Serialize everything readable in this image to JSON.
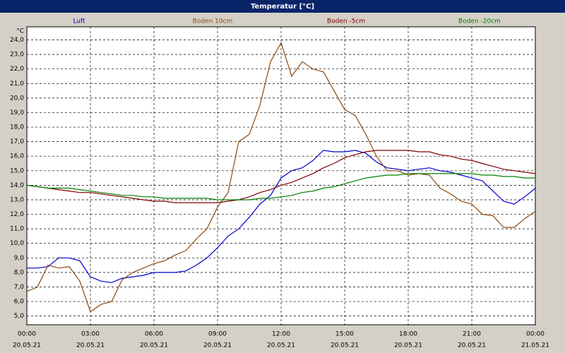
{
  "chart_data": {
    "type": "line",
    "title": "Temperatur [°C]",
    "y_unit": "°C",
    "x": [
      0,
      0.5,
      1,
      1.5,
      2,
      2.5,
      3,
      3.5,
      4,
      4.5,
      5,
      5.5,
      6,
      6.5,
      7,
      7.5,
      8,
      8.5,
      9,
      9.5,
      10,
      10.5,
      11,
      11.5,
      12,
      12.5,
      13,
      13.5,
      14,
      14.5,
      15,
      15.5,
      16,
      16.5,
      17,
      17.5,
      18,
      18.5,
      19,
      19.5,
      20,
      20.5,
      21,
      21.5,
      22,
      22.5,
      23,
      23.5,
      24
    ],
    "xlim": [
      0,
      24
    ],
    "xticks": [
      {
        "value": 0,
        "label": [
          "00:00",
          "20.05.21"
        ]
      },
      {
        "value": 3,
        "label": [
          "03:00",
          "20.05.21"
        ]
      },
      {
        "value": 6,
        "label": [
          "06:00",
          "20.05.21"
        ]
      },
      {
        "value": 9,
        "label": [
          "09:00",
          "20.05.21"
        ]
      },
      {
        "value": 12,
        "label": [
          "12:00",
          "20.05.21"
        ]
      },
      {
        "value": 15,
        "label": [
          "15:00",
          "20.05.21"
        ]
      },
      {
        "value": 18,
        "label": [
          "18:00",
          "20.05.21"
        ]
      },
      {
        "value": 21,
        "label": [
          "21:00",
          "20.05.21"
        ]
      },
      {
        "value": 24,
        "label": [
          "00:00",
          "21.05.21"
        ]
      }
    ],
    "ylim": [
      4.4,
      24.9
    ],
    "yticks": [
      {
        "value": 5,
        "label": "5,0"
      },
      {
        "value": 6,
        "label": "6,0"
      },
      {
        "value": 7,
        "label": "7,0"
      },
      {
        "value": 8,
        "label": "8,0"
      },
      {
        "value": 9,
        "label": "9,0"
      },
      {
        "value": 10,
        "label": "10,0"
      },
      {
        "value": 11,
        "label": "11,0"
      },
      {
        "value": 12,
        "label": "12,0"
      },
      {
        "value": 13,
        "label": "13,0"
      },
      {
        "value": 14,
        "label": "14,0"
      },
      {
        "value": 15,
        "label": "15,0"
      },
      {
        "value": 16,
        "label": "16,0"
      },
      {
        "value": 17,
        "label": "17,0"
      },
      {
        "value": 18,
        "label": "18,0"
      },
      {
        "value": 19,
        "label": "19,0"
      },
      {
        "value": 20,
        "label": "20,0"
      },
      {
        "value": 21,
        "label": "21,0"
      },
      {
        "value": 22,
        "label": "22,0"
      },
      {
        "value": 23,
        "label": "23,0"
      },
      {
        "value": 24,
        "label": "24,0"
      }
    ],
    "grid": true,
    "series": [
      {
        "name": "Luft",
        "color": "#0000cc",
        "values": [
          8.3,
          8.3,
          8.4,
          9.0,
          9.0,
          8.8,
          7.7,
          7.4,
          7.3,
          7.6,
          7.7,
          7.8,
          8.0,
          8.0,
          8.0,
          8.1,
          8.5,
          9.0,
          9.7,
          10.5,
          11.0,
          11.8,
          12.7,
          13.3,
          14.5,
          15.0,
          15.2,
          15.7,
          16.4,
          16.3,
          16.3,
          16.4,
          16.2,
          15.6,
          15.2,
          15.1,
          15.0,
          15.1,
          15.2,
          15.0,
          14.9,
          14.7,
          14.5,
          14.3,
          13.6,
          12.9,
          12.7,
          13.2,
          13.8
        ]
      },
      {
        "name": "Boden 10cm",
        "color": "#8b4a10",
        "values": [
          6.7,
          7.0,
          8.5,
          8.3,
          8.4,
          7.4,
          5.3,
          5.8,
          6.0,
          7.5,
          8.0,
          8.3,
          8.6,
          8.8,
          9.2,
          9.5,
          10.3,
          11.0,
          12.5,
          13.5,
          17.0,
          17.5,
          19.5,
          22.5,
          23.8,
          21.5,
          22.5,
          22.0,
          21.8,
          20.5,
          19.2,
          18.8,
          17.5,
          16.0,
          15.0,
          15.0,
          14.7,
          14.8,
          14.7,
          13.8,
          13.4,
          12.9,
          12.7,
          12.0,
          11.9,
          11.1,
          11.1,
          11.7,
          12.2
        ]
      },
      {
        "name": "Boden -5cm",
        "color": "#800000",
        "values": [
          14.0,
          13.9,
          13.8,
          13.7,
          13.6,
          13.5,
          13.5,
          13.4,
          13.3,
          13.2,
          13.1,
          13.0,
          12.9,
          12.9,
          12.8,
          12.8,
          12.8,
          12.8,
          12.8,
          12.9,
          13.0,
          13.2,
          13.5,
          13.7,
          14.0,
          14.2,
          14.5,
          14.8,
          15.2,
          15.5,
          15.9,
          16.1,
          16.3,
          16.4,
          16.4,
          16.4,
          16.4,
          16.3,
          16.3,
          16.1,
          16.0,
          15.8,
          15.7,
          15.5,
          15.3,
          15.1,
          15.0,
          14.9,
          14.8
        ]
      },
      {
        "name": "Boden -20cm",
        "color": "#008000",
        "values": [
          14.0,
          13.9,
          13.8,
          13.8,
          13.8,
          13.7,
          13.6,
          13.5,
          13.4,
          13.3,
          13.3,
          13.2,
          13.2,
          13.1,
          13.1,
          13.1,
          13.1,
          13.1,
          13.0,
          13.0,
          13.0,
          13.0,
          13.1,
          13.1,
          13.2,
          13.3,
          13.5,
          13.6,
          13.8,
          13.9,
          14.1,
          14.3,
          14.5,
          14.6,
          14.7,
          14.7,
          14.8,
          14.8,
          14.8,
          14.8,
          14.8,
          14.8,
          14.8,
          14.7,
          14.7,
          14.6,
          14.6,
          14.5,
          14.5
        ]
      }
    ]
  }
}
